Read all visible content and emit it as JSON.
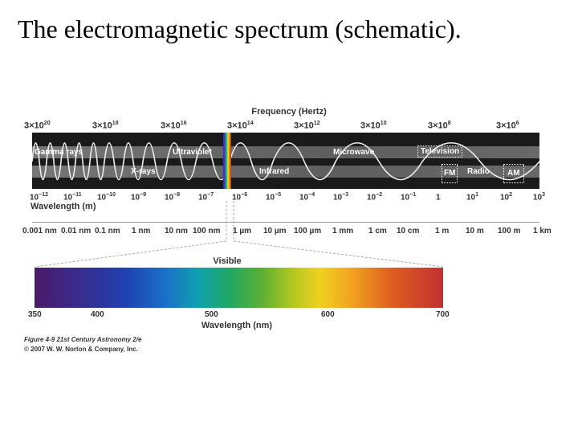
{
  "title": "The electromagnetic spectrum (schematic).",
  "frequency_title": "Frequency (Hertz)",
  "frequency_ticks": [
    {
      "m": "3",
      "x": "×10",
      "e": "20"
    },
    {
      "m": "3",
      "x": "×10",
      "e": "18"
    },
    {
      "m": "3",
      "x": "×10",
      "e": "16"
    },
    {
      "m": "3",
      "x": "×10",
      "e": "14"
    },
    {
      "m": "3",
      "x": "×10",
      "e": "12"
    },
    {
      "m": "3",
      "x": "×10",
      "e": "10"
    },
    {
      "m": "3",
      "x": "×10",
      "e": "8"
    },
    {
      "m": "3",
      "x": "×10",
      "e": "6"
    }
  ],
  "bands_top": [
    "Gamma rays",
    "Ultraviolet",
    "Microwave",
    "Television"
  ],
  "bands_bottom": [
    "X-rays",
    "Infrared",
    "FM",
    "Radio",
    "AM"
  ],
  "wavelength_ticks": [
    {
      "b": "10",
      "e": "−12"
    },
    {
      "b": "10",
      "e": "−11"
    },
    {
      "b": "10",
      "e": "−10"
    },
    {
      "b": "10",
      "e": "−9"
    },
    {
      "b": "10",
      "e": "−8"
    },
    {
      "b": "10",
      "e": "−7"
    },
    {
      "b": "10",
      "e": "−6"
    },
    {
      "b": "10",
      "e": "−5"
    },
    {
      "b": "10",
      "e": "−4"
    },
    {
      "b": "10",
      "e": "−3"
    },
    {
      "b": "10",
      "e": "−2"
    },
    {
      "b": "10",
      "e": "−1"
    },
    {
      "b": "1",
      "e": ""
    },
    {
      "b": "10",
      "e": "1"
    },
    {
      "b": "10",
      "e": "2"
    },
    {
      "b": "10",
      "e": "3"
    }
  ],
  "wavelength_title": "Wavelength (m)",
  "length_scale": [
    "0.001 nm",
    "0.01 nm",
    "0.1 nm",
    "1 nm",
    "10 nm",
    "100 nm",
    "1 µm",
    "10 µm",
    "100 µm",
    "1 mm",
    "1 cm",
    "10 cm",
    "1 m",
    "10 m",
    "100 m",
    "1 km"
  ],
  "visible_title": "Visible",
  "visible_ticks": [
    "350",
    "400",
    "500",
    "600",
    "700"
  ],
  "visible_xlabel": "Wavelength (nm)",
  "credit_line1": "Figure 4-9  21st Century Astronomy 2/e",
  "credit_line2": "© 2007 W. W. Norton & Company, Inc."
}
